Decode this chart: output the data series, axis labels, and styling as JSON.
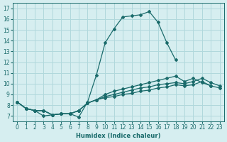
{
  "xlabel": "Humidex (Indice chaleur)",
  "xlim": [
    -0.5,
    23.5
  ],
  "ylim": [
    6.5,
    17.5
  ],
  "xticks": [
    0,
    1,
    2,
    3,
    4,
    5,
    6,
    7,
    8,
    9,
    10,
    11,
    12,
    13,
    14,
    15,
    16,
    17,
    18,
    19,
    20,
    21,
    22,
    23
  ],
  "yticks": [
    7,
    8,
    9,
    10,
    11,
    12,
    13,
    14,
    15,
    16,
    17
  ],
  "background_color": "#d6eef0",
  "grid_color": "#b0d8dc",
  "line_color": "#1a6b6b",
  "lines": [
    {
      "x": [
        0,
        1,
        2,
        3,
        4,
        5,
        6,
        7,
        8,
        9,
        10,
        11,
        12,
        13,
        14,
        15,
        16,
        17,
        18
      ],
      "y": [
        8.3,
        7.7,
        7.5,
        7.0,
        7.1,
        7.2,
        7.2,
        6.9,
        8.3,
        10.8,
        13.8,
        15.1,
        16.2,
        16.3,
        16.4,
        16.7,
        15.7,
        13.8,
        12.2
      ]
    },
    {
      "x": [
        0,
        1,
        2,
        3,
        4,
        5,
        6,
        7,
        8,
        9,
        10,
        11,
        12,
        13,
        14,
        15,
        16,
        17,
        18,
        19,
        20,
        21,
        22
      ],
      "y": [
        8.3,
        7.7,
        7.5,
        7.5,
        7.1,
        7.2,
        7.2,
        7.5,
        8.2,
        8.5,
        9.0,
        9.3,
        9.5,
        9.7,
        9.9,
        10.1,
        10.3,
        10.5,
        10.7,
        10.2,
        10.5,
        10.1,
        9.8
      ]
    },
    {
      "x": [
        0,
        1,
        2,
        3,
        4,
        5,
        6,
        7,
        8,
        9,
        10,
        11,
        12,
        13,
        14,
        15,
        16,
        17,
        18,
        19,
        20,
        21,
        22,
        23
      ],
      "y": [
        8.3,
        7.7,
        7.5,
        7.5,
        7.1,
        7.2,
        7.2,
        7.5,
        8.2,
        8.5,
        8.8,
        9.0,
        9.2,
        9.4,
        9.6,
        9.7,
        9.9,
        10.0,
        10.1,
        10.0,
        10.2,
        10.5,
        10.1,
        9.8
      ]
    },
    {
      "x": [
        0,
        1,
        2,
        3,
        4,
        5,
        6,
        7,
        8,
        9,
        10,
        11,
        12,
        13,
        14,
        15,
        16,
        17,
        18,
        19,
        20,
        21,
        22,
        23
      ],
      "y": [
        8.3,
        7.7,
        7.5,
        7.5,
        7.1,
        7.2,
        7.2,
        7.5,
        8.2,
        8.5,
        8.7,
        8.8,
        9.0,
        9.1,
        9.3,
        9.4,
        9.6,
        9.7,
        9.9,
        9.8,
        9.9,
        10.2,
        9.8,
        9.6
      ]
    }
  ]
}
